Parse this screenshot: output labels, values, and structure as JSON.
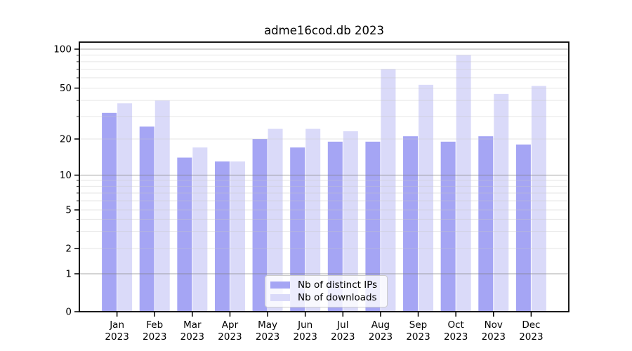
{
  "title": "adme16cod.db 2023",
  "chart_data": {
    "type": "bar",
    "title": "adme16cod.db 2023",
    "categories": [
      "Jan",
      "Feb",
      "Mar",
      "Apr",
      "May",
      "Jun",
      "Jul",
      "Aug",
      "Sep",
      "Oct",
      "Nov",
      "Dec"
    ],
    "category_year": "2023",
    "series": [
      {
        "name": "Nb of distinct IPs",
        "color": "#a5a5f4",
        "values": [
          32,
          25,
          14,
          13,
          20,
          17,
          19,
          19,
          21,
          19,
          21,
          18
        ]
      },
      {
        "name": "Nb of downloads",
        "color": "#dadaf9",
        "values": [
          38,
          40,
          17,
          13,
          24,
          24,
          23,
          70,
          53,
          90,
          45,
          52
        ]
      }
    ],
    "xlabel": "",
    "ylabel": "",
    "ylim": [
      0,
      100
    ],
    "yscale": "log-like",
    "y_major_ticks": [
      0,
      1,
      2,
      5,
      10,
      20,
      50,
      100
    ],
    "y_minor_gridlines": [
      3,
      4,
      6,
      7,
      8,
      9,
      30,
      40,
      60,
      70,
      80,
      90
    ],
    "grid": true,
    "legend_position": "lower center"
  },
  "colors": {
    "major_gridline": "rgba(130,130,130,0.55)",
    "minor_gridline": "rgba(200,200,200,0.45)",
    "axis": "#000000"
  }
}
